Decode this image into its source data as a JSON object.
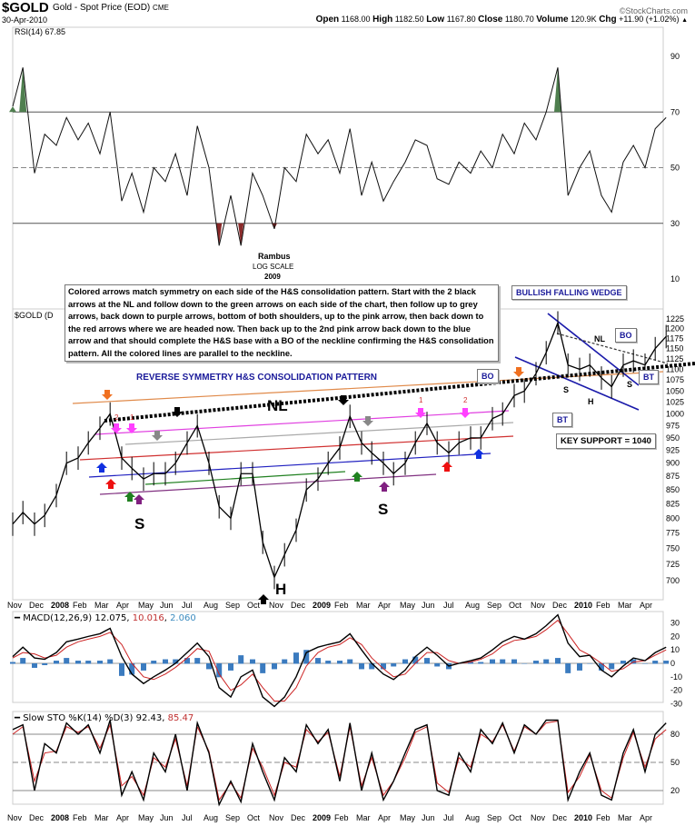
{
  "header": {
    "symbol": "$GOLD",
    "name": "Gold - Spot Price (EOD)",
    "exchange": "CME",
    "date": "30-Apr-2010",
    "copyright": "©StockCharts.com",
    "open_label": "Open",
    "open": "1168.00",
    "high_label": "High",
    "high": "1182.50",
    "low_label": "Low",
    "low": "1167.80",
    "close_label": "Close",
    "close": "1180.70",
    "volume_label": "Volume",
    "volume": "120.9K",
    "chg_label": "Chg",
    "chg": "+11.90 (+1.02%)",
    "chg_icon": "triangle-up"
  },
  "annotations": {
    "author": "Rambus",
    "scale": "LOG SCALE",
    "year": "2009",
    "note": "Colored arrows match symmetry on each side of the H&S consolidation pattern. Start with the 2 black arrows at the NL and follow down to the green arrows on each side of the chart, then follow up to grey arrows, back down to purple arrows, bottom of both shoulders, up to the pink arrow, then back down to the red arrows where we are headed now. Then back up to the 2nd pink arrow back down to the blue arrow and that should complete the H&S base with a BO of the neckline confirming the H&S consolidation pattern. All the colored lines are parallel to the neckline.",
    "pattern_title": "REVERSE SYMMETRY H&S CONSOLIDATION PATTERN",
    "wedge": "BULLISH FALLING WEDGE",
    "key_support": "KEY SUPPORT = 1040",
    "nl": "NL",
    "nl2": "NL",
    "s_left": "S",
    "s_right": "S",
    "h": "H",
    "s_small1": "S",
    "s_small2": "S",
    "h_small": "H",
    "bo1": "BO",
    "bo2": "BO",
    "bt1": "BT",
    "bt2": "BT",
    "num_2a": "2",
    "num_1a": "1",
    "num_1b": "1",
    "num_2b": "2"
  },
  "colors": {
    "price": "#000000",
    "rsi_fill": "#4f7f4f",
    "macd_hist": "#3b7bbf",
    "signal": "#cc2222",
    "neckline": "#000000",
    "orange_line": "#e08a4a",
    "pink_line": "#e040e0",
    "grey_line": "#999999",
    "red_line": "#d03030",
    "blue_line": "#2020c0",
    "green_line": "#208020",
    "purple_line": "#803080",
    "wedge": "#1a1aaa"
  },
  "chart_data": [
    {
      "type": "line",
      "panel": "RSI",
      "label": "RSI(14)",
      "value": "67.85",
      "y_ticks": [
        10,
        30,
        50,
        70,
        90
      ],
      "ylim": [
        0,
        100
      ],
      "reference_lines": [
        30,
        50,
        70
      ],
      "x": [
        "2007-11-01",
        "2007-11-15",
        "2007-12-01",
        "2007-12-15",
        "2008-01-01",
        "2008-01-15",
        "2008-02-01",
        "2008-02-15",
        "2008-03-01",
        "2008-03-15",
        "2008-04-01",
        "2008-04-15",
        "2008-05-01",
        "2008-05-15",
        "2008-06-01",
        "2008-06-15",
        "2008-07-01",
        "2008-07-15",
        "2008-08-01",
        "2008-08-15",
        "2008-09-01",
        "2008-09-15",
        "2008-10-01",
        "2008-10-15",
        "2008-11-01",
        "2008-11-15",
        "2008-12-01",
        "2008-12-15",
        "2009-01-01",
        "2009-01-15",
        "2009-02-01",
        "2009-02-15",
        "2009-03-01",
        "2009-03-15",
        "2009-04-01",
        "2009-04-15",
        "2009-05-01",
        "2009-05-15",
        "2009-06-01",
        "2009-06-15",
        "2009-07-01",
        "2009-07-15",
        "2009-08-01",
        "2009-08-15",
        "2009-09-01",
        "2009-09-15",
        "2009-10-01",
        "2009-10-15",
        "2009-11-01",
        "2009-11-15",
        "2009-12-01",
        "2009-12-15",
        "2010-01-01",
        "2010-01-15",
        "2010-02-01",
        "2010-02-15",
        "2010-03-01",
        "2010-03-15",
        "2010-04-01",
        "2010-04-15",
        "2010-04-30"
      ],
      "values": [
        72,
        86,
        48,
        62,
        58,
        68,
        60,
        66,
        55,
        70,
        38,
        48,
        34,
        50,
        45,
        55,
        40,
        65,
        50,
        22,
        40,
        22,
        48,
        40,
        28,
        50,
        45,
        62,
        55,
        60,
        48,
        64,
        40,
        52,
        38,
        45,
        52,
        60,
        58,
        46,
        44,
        52,
        48,
        56,
        50,
        62,
        55,
        66,
        60,
        70,
        86,
        40,
        50,
        56,
        40,
        34,
        52,
        58,
        50,
        64,
        68
      ]
    },
    {
      "type": "line",
      "panel": "price",
      "label": "$GOLD (D",
      "scale": "log",
      "y_ticks": [
        700,
        725,
        750,
        775,
        800,
        825,
        850,
        875,
        900,
        925,
        950,
        975,
        1000,
        1025,
        1050,
        1075,
        1100,
        1125,
        1150,
        1175,
        1200,
        1225
      ],
      "ylim": [
        690,
        1240
      ],
      "x_ticks": [
        "Nov",
        "Dec",
        "2008",
        "Feb",
        "Mar",
        "Apr",
        "May",
        "Jun",
        "Jul",
        "Aug",
        "Sep",
        "Oct",
        "Nov",
        "Dec",
        "2009",
        "Feb",
        "Mar",
        "Apr",
        "May",
        "Jun",
        "Jul",
        "Aug",
        "Sep",
        "Oct",
        "Nov",
        "Dec",
        "2010",
        "Feb",
        "Mar",
        "Apr"
      ],
      "x": [
        "2007-11-01",
        "2007-11-15",
        "2007-12-01",
        "2007-12-15",
        "2008-01-01",
        "2008-01-15",
        "2008-02-01",
        "2008-02-15",
        "2008-03-01",
        "2008-03-15",
        "2008-04-01",
        "2008-04-15",
        "2008-05-01",
        "2008-05-15",
        "2008-06-01",
        "2008-06-15",
        "2008-07-01",
        "2008-07-15",
        "2008-08-01",
        "2008-08-15",
        "2008-09-01",
        "2008-09-15",
        "2008-10-01",
        "2008-10-15",
        "2008-11-01",
        "2008-11-15",
        "2008-12-01",
        "2008-12-15",
        "2009-01-01",
        "2009-01-15",
        "2009-02-01",
        "2009-02-15",
        "2009-03-01",
        "2009-03-15",
        "2009-04-01",
        "2009-04-15",
        "2009-05-01",
        "2009-05-15",
        "2009-06-01",
        "2009-06-15",
        "2009-07-01",
        "2009-07-15",
        "2009-08-01",
        "2009-08-15",
        "2009-09-01",
        "2009-09-15",
        "2009-10-01",
        "2009-10-15",
        "2009-11-01",
        "2009-11-15",
        "2009-12-01",
        "2009-12-15",
        "2010-01-01",
        "2010-01-15",
        "2010-02-01",
        "2010-02-15",
        "2010-03-01",
        "2010-03-15",
        "2010-04-01",
        "2010-04-15",
        "2010-04-30"
      ],
      "values": [
        790,
        810,
        790,
        805,
        840,
        900,
        910,
        940,
        970,
        1000,
        910,
        890,
        870,
        880,
        880,
        900,
        940,
        975,
        900,
        820,
        800,
        880,
        880,
        760,
        705,
        740,
        780,
        850,
        870,
        900,
        930,
        995,
        940,
        920,
        900,
        880,
        900,
        940,
        980,
        940,
        920,
        940,
        950,
        950,
        990,
        1000,
        1040,
        1050,
        1090,
        1140,
        1215,
        1110,
        1100,
        1110,
        1080,
        1060,
        1110,
        1120,
        1110,
        1150,
        1180
      ]
    },
    {
      "type": "line",
      "panel": "MACD",
      "label": "MACD(12,26,9)",
      "values_text": [
        "12.075",
        "10.016",
        "2.060"
      ],
      "y_ticks": [
        -30,
        -20,
        -10,
        0,
        10,
        20,
        30
      ],
      "ylim": [
        -35,
        38
      ],
      "macd": [
        5,
        12,
        4,
        3,
        8,
        16,
        18,
        20,
        22,
        26,
        5,
        -8,
        -15,
        -10,
        -5,
        0,
        8,
        15,
        5,
        -18,
        -25,
        -10,
        -5,
        -25,
        -32,
        -25,
        -10,
        8,
        12,
        14,
        16,
        22,
        10,
        0,
        -8,
        -12,
        -5,
        5,
        12,
        6,
        -2,
        0,
        2,
        4,
        10,
        16,
        20,
        18,
        22,
        28,
        36,
        15,
        5,
        6,
        -5,
        -10,
        -2,
        4,
        2,
        8,
        12
      ],
      "signal": [
        4,
        8,
        7,
        4,
        6,
        12,
        16,
        18,
        20,
        23,
        14,
        0,
        -10,
        -12,
        -8,
        -3,
        4,
        11,
        9,
        -8,
        -20,
        -16,
        -8,
        -18,
        -28,
        -28,
        -18,
        -2,
        8,
        12,
        14,
        19,
        14,
        4,
        -4,
        -10,
        -8,
        0,
        8,
        8,
        2,
        0,
        1,
        3,
        7,
        13,
        17,
        18,
        20,
        25,
        32,
        22,
        10,
        6,
        0,
        -6,
        -4,
        1,
        2,
        6,
        10
      ]
    },
    {
      "type": "line",
      "panel": "STO",
      "label": "Slow STO %K(14) %D(3)",
      "values_text": [
        "92.43",
        "85.47"
      ],
      "y_ticks": [
        20,
        50,
        80
      ],
      "ylim": [
        0,
        100
      ],
      "k": [
        85,
        90,
        20,
        70,
        60,
        92,
        80,
        90,
        60,
        95,
        15,
        40,
        10,
        60,
        40,
        80,
        20,
        92,
        60,
        5,
        30,
        8,
        70,
        40,
        10,
        55,
        40,
        90,
        70,
        85,
        30,
        92,
        20,
        60,
        10,
        30,
        60,
        85,
        90,
        20,
        15,
        60,
        40,
        85,
        70,
        92,
        60,
        90,
        80,
        95,
        95,
        10,
        40,
        60,
        15,
        10,
        60,
        85,
        40,
        80,
        92
      ],
      "d": [
        80,
        88,
        30,
        60,
        62,
        88,
        82,
        88,
        65,
        90,
        25,
        35,
        15,
        55,
        45,
        75,
        25,
        88,
        62,
        10,
        28,
        12,
        65,
        45,
        15,
        50,
        45,
        85,
        72,
        82,
        35,
        88,
        25,
        55,
        15,
        30,
        55,
        82,
        88,
        28,
        18,
        55,
        45,
        80,
        72,
        90,
        62,
        88,
        80,
        92,
        94,
        18,
        35,
        58,
        20,
        12,
        55,
        82,
        45,
        75,
        85
      ]
    }
  ]
}
